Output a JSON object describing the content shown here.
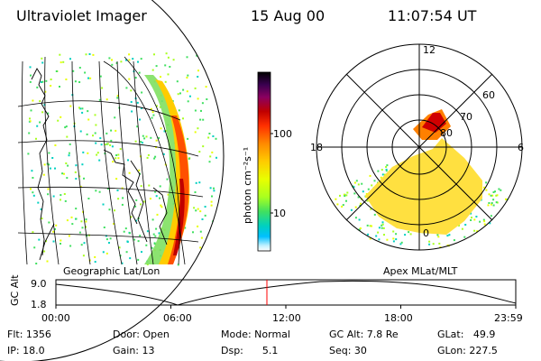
{
  "header": {
    "title": "Ultraviolet Imager",
    "date": "15 Aug 00",
    "time": "11:07:54 UT"
  },
  "colorbar": {
    "label": "photon cm⁻²s⁻¹",
    "ticks": [
      "100",
      "10"
    ],
    "colors": [
      "#000000",
      "#3a0050",
      "#8a0060",
      "#c00000",
      "#ff3000",
      "#ff8a00",
      "#ffcc00",
      "#e8ff00",
      "#a8ff20",
      "#40e060",
      "#00d0c0",
      "#00c0ff",
      "#c0f0ff",
      "#ffffff"
    ]
  },
  "polar": {
    "clock_labels": [
      "12",
      "18",
      "6",
      "0"
    ],
    "lat_labels": [
      "60",
      "70",
      "80"
    ]
  },
  "maps": {
    "left_caption": "Geographic Lat/Lon",
    "right_caption": "Apex MLat/MLT"
  },
  "timeline": {
    "axis_label": "GC Alt",
    "y_ticks": [
      "9.0",
      "1.8"
    ],
    "x_ticks": [
      "00:00",
      "06:00",
      "12:00",
      "18:00",
      "23:59"
    ],
    "marker_time": "11:07"
  },
  "info": {
    "flt": "Flt: 1356",
    "ip": "IP: 18.0",
    "door": "Door: Open",
    "gain": "Gain: 13",
    "mode": "Mode: Normal",
    "dsp": "Dsp:      5.1",
    "gc_alt": "GC Alt: 7.8 Re",
    "seq": "Seq: 30",
    "glat": "GLat:   49.9",
    "glon": "GLon: 227.5"
  }
}
